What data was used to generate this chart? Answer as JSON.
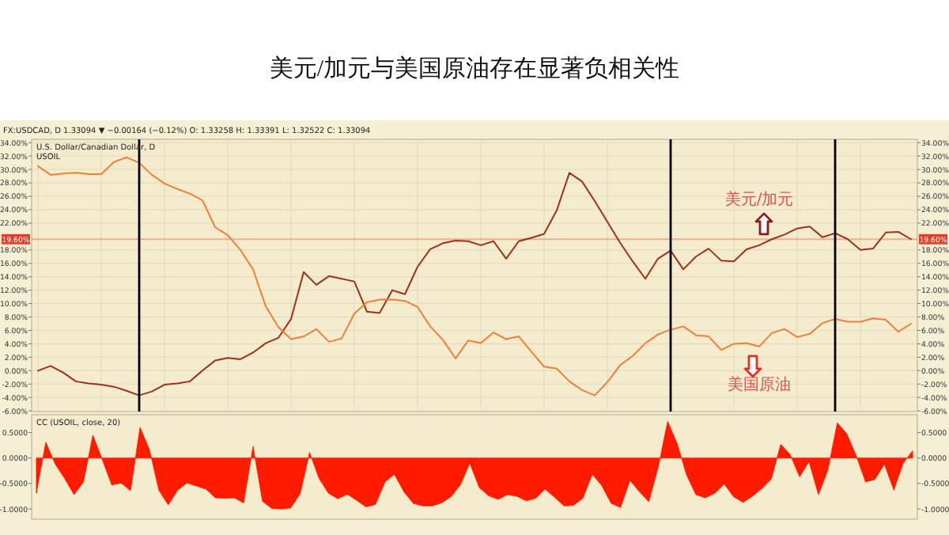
{
  "chart_data": [
    {
      "type": "line",
      "title": "美元/加元与美国原油存在显著负相关性",
      "annotations": [
        "FX:USDCAD, D 1.33094 ▼ −0.00164 (−0.12%) O: 1.33258 H: 1.33391 L: 1.32522 C: 1.33094",
        "U.S. Dollar/Canadian Dollar, D",
        "USOIL"
      ],
      "tick_labels": "y",
      "categories": [
        null,
        null,
        null,
        null,
        null,
        null,
        null,
        null,
        null,
        null,
        null,
        null,
        null,
        null,
        null,
        null,
        null,
        null,
        null,
        null,
        null,
        null,
        null,
        null,
        null,
        null,
        null,
        null,
        null,
        null,
        null,
        null,
        null,
        null,
        null,
        null,
        null,
        null,
        null,
        null,
        null,
        null,
        null,
        null,
        null,
        null,
        null,
        null,
        null,
        null,
        null,
        null,
        null,
        null,
        null,
        null,
        null,
        null,
        null,
        null,
        null,
        null,
        null,
        null,
        null,
        null,
        null,
        null,
        null,
        null
      ],
      "ylim": [
        -6.1,
        34.5
      ],
      "y2lim": [
        -6.1,
        34.5
      ],
      "yticks": [
        {
          "value": -6,
          "label": "-6.00%"
        },
        {
          "value": -4,
          "label": "-4.00%"
        },
        {
          "value": -2,
          "label": "-2.00%"
        },
        {
          "value": 0,
          "label": "0.00%"
        },
        {
          "value": 2,
          "label": "2.00%"
        },
        {
          "value": 4,
          "label": "4.00%"
        },
        {
          "value": 6,
          "label": "6.00%"
        },
        {
          "value": 8,
          "label": "8.00%"
        },
        {
          "value": 10,
          "label": "10.00%"
        },
        {
          "value": 12,
          "label": "12.00%"
        },
        {
          "value": 14,
          "label": "14.00%"
        },
        {
          "value": 16,
          "label": "16.00%"
        },
        {
          "value": 18,
          "label": "18.00%"
        },
        {
          "value": 22,
          "label": "22.00%"
        },
        {
          "value": 24,
          "label": "24.00%"
        },
        {
          "value": 26,
          "label": "26.00%"
        },
        {
          "value": 28,
          "label": "28.00%"
        },
        {
          "value": 30,
          "label": "30.00%"
        },
        {
          "value": 32,
          "label": "32.00%"
        },
        {
          "value": 34,
          "label": "34.00%"
        }
      ],
      "y2ticks": [
        {
          "value": -6,
          "label": "-6.00%"
        },
        {
          "value": -4,
          "label": "-4.00%"
        },
        {
          "value": -2,
          "label": "-2.00%"
        },
        {
          "value": 0,
          "label": "0.00%"
        },
        {
          "value": 2,
          "label": "2.00%"
        },
        {
          "value": 4,
          "label": "4.00%"
        },
        {
          "value": 6,
          "label": "6.00%"
        },
        {
          "value": 8,
          "label": "8.00%"
        },
        {
          "value": 10,
          "label": "10.00%"
        },
        {
          "value": 12,
          "label": "12.00%"
        },
        {
          "value": 14,
          "label": "14.00%"
        },
        {
          "value": 16,
          "label": "16.00%"
        },
        {
          "value": 18,
          "label": "18.00%"
        },
        {
          "value": 22,
          "label": "22.00%"
        },
        {
          "value": 24,
          "label": "24.00%"
        },
        {
          "value": 26,
          "label": "26.00%"
        },
        {
          "value": 28,
          "label": "28.00%"
        },
        {
          "value": 30,
          "label": "30.00%"
        },
        {
          "value": 32,
          "label": "32.00%"
        },
        {
          "value": 34,
          "label": "34.00%"
        }
      ],
      "ref_lines": [
        {
          "axis": "y",
          "value": 19.6,
          "label": "19.60%",
          "color": "#d9412b"
        }
      ],
      "grid": true,
      "series": [
        {
          "name": "美元/加元",
          "color": "#a0301c",
          "values": [
            0.0,
            0.7,
            -0.3,
            -1.6,
            -1.9,
            -2.1,
            -2.4,
            -3.0,
            -3.7,
            -3.1,
            -2.1,
            -1.9,
            -1.6,
            0.0,
            1.5,
            1.9,
            1.7,
            2.7,
            4.1,
            4.9,
            7.7,
            14.7,
            12.8,
            14.1,
            13.7,
            13.3,
            8.8,
            8.6,
            12.0,
            11.4,
            15.5,
            18.1,
            19.0,
            19.4,
            19.3,
            18.7,
            19.3,
            16.7,
            19.3,
            19.8,
            20.4,
            23.9,
            29.5,
            28.2,
            25.3,
            22.2,
            19.1,
            16.3,
            13.7,
            16.7,
            17.9,
            15.1,
            17.0,
            18.2,
            16.4,
            16.3,
            18.1,
            18.7,
            19.6,
            20.3,
            21.2,
            21.5,
            19.9,
            20.5,
            19.6,
            18.0,
            18.2,
            20.6,
            20.7,
            19.6
          ]
        },
        {
          "name": "美国原油",
          "color": "#f07f3c",
          "values": [
            30.5,
            29.2,
            29.4,
            29.5,
            29.3,
            29.3,
            31.1,
            31.8,
            31.0,
            29.2,
            27.9,
            27.1,
            26.4,
            25.4,
            21.4,
            20.2,
            18.0,
            15.1,
            9.6,
            6.5,
            4.7,
            5.1,
            6.2,
            4.3,
            4.8,
            8.5,
            10.2,
            10.6,
            10.6,
            10.4,
            9.5,
            6.6,
            4.6,
            1.8,
            4.5,
            4.1,
            5.7,
            4.7,
            5.1,
            2.8,
            0.6,
            0.3,
            -1.6,
            -2.9,
            -3.7,
            -1.7,
            0.8,
            2.2,
            4.1,
            5.4,
            6.1,
            6.6,
            5.3,
            5.1,
            3.1,
            4.0,
            4.1,
            3.6,
            5.6,
            6.2,
            5.0,
            5.5,
            7.1,
            7.7,
            7.3,
            7.3,
            7.8,
            7.6,
            5.8,
            7.0
          ]
        }
      ]
    },
    {
      "type": "area",
      "annotations": [
        "CC (USOIL, close, 20)"
      ],
      "tick_labels": "y",
      "categories": [
        null,
        null,
        null,
        null,
        null,
        null,
        null,
        null,
        null,
        null,
        null,
        null,
        null,
        null,
        null,
        null,
        null,
        null,
        null,
        null,
        null,
        null,
        null,
        null,
        null,
        null,
        null,
        null,
        null,
        null,
        null,
        null,
        null,
        null,
        null,
        null,
        null,
        null,
        null,
        null,
        null,
        null,
        null,
        null,
        null,
        null,
        null,
        null,
        null,
        null,
        null,
        null,
        null,
        null,
        null,
        null,
        null,
        null,
        null,
        null,
        null,
        null,
        null,
        null,
        null,
        null,
        null,
        null,
        null,
        null,
        null,
        null,
        null,
        null,
        null,
        null,
        null,
        null,
        null,
        null,
        null,
        null,
        null,
        null,
        null,
        null,
        null,
        null,
        null,
        null,
        null,
        null,
        null,
        null
      ],
      "ylim": [
        -1.2,
        0.85
      ],
      "y2lim": [
        -1.2,
        0.85
      ],
      "yticks": [
        {
          "value": -1,
          "label": "-1.0000"
        },
        {
          "value": -0.5,
          "label": "-0.5000"
        },
        {
          "value": 0,
          "label": "0.0000"
        },
        {
          "value": 0.5,
          "label": "0.5000"
        }
      ],
      "y2ticks": [
        {
          "value": -1,
          "label": "-1.0000"
        },
        {
          "value": -0.5,
          "label": "-0.5000"
        },
        {
          "value": 0,
          "label": "0.0000"
        },
        {
          "value": 0.5,
          "label": "0.5000"
        }
      ],
      "series": [
        {
          "color": "#ff1a00",
          "values": [
            -0.69,
            0.31,
            -0.12,
            -0.4,
            -0.72,
            -0.47,
            0.45,
            -0.03,
            -0.53,
            -0.49,
            -0.64,
            0.6,
            0.17,
            -0.63,
            -0.92,
            -0.63,
            -0.49,
            -0.55,
            -0.61,
            -0.78,
            -0.79,
            -0.78,
            -0.88,
            0.23,
            -0.85,
            -0.99,
            -1.0,
            -0.98,
            -0.7,
            0.11,
            -0.4,
            -0.69,
            -0.8,
            -0.71,
            -0.83,
            -0.96,
            -0.91,
            -0.47,
            -0.32,
            -0.66,
            -0.89,
            -0.94,
            -0.94,
            -0.88,
            -0.76,
            -0.53,
            -0.1,
            -0.58,
            -0.74,
            -0.81,
            -0.72,
            -0.75,
            -0.84,
            -0.79,
            -0.61,
            -0.77,
            -0.94,
            -0.93,
            -0.79,
            -0.32,
            -0.54,
            -0.89,
            -0.97,
            -0.44,
            -0.66,
            -0.86,
            -0.18,
            0.72,
            0.29,
            -0.33,
            -0.72,
            -0.78,
            -0.69,
            -0.51,
            -0.76,
            -0.87,
            -0.75,
            -0.6,
            -0.41,
            0.27,
            0.07,
            -0.37,
            -0.07,
            -0.72,
            -0.24,
            0.69,
            0.48,
            0.05,
            -0.47,
            -0.42,
            -0.12,
            -0.63,
            -0.1,
            0.14
          ]
        }
      ]
    }
  ]
}
